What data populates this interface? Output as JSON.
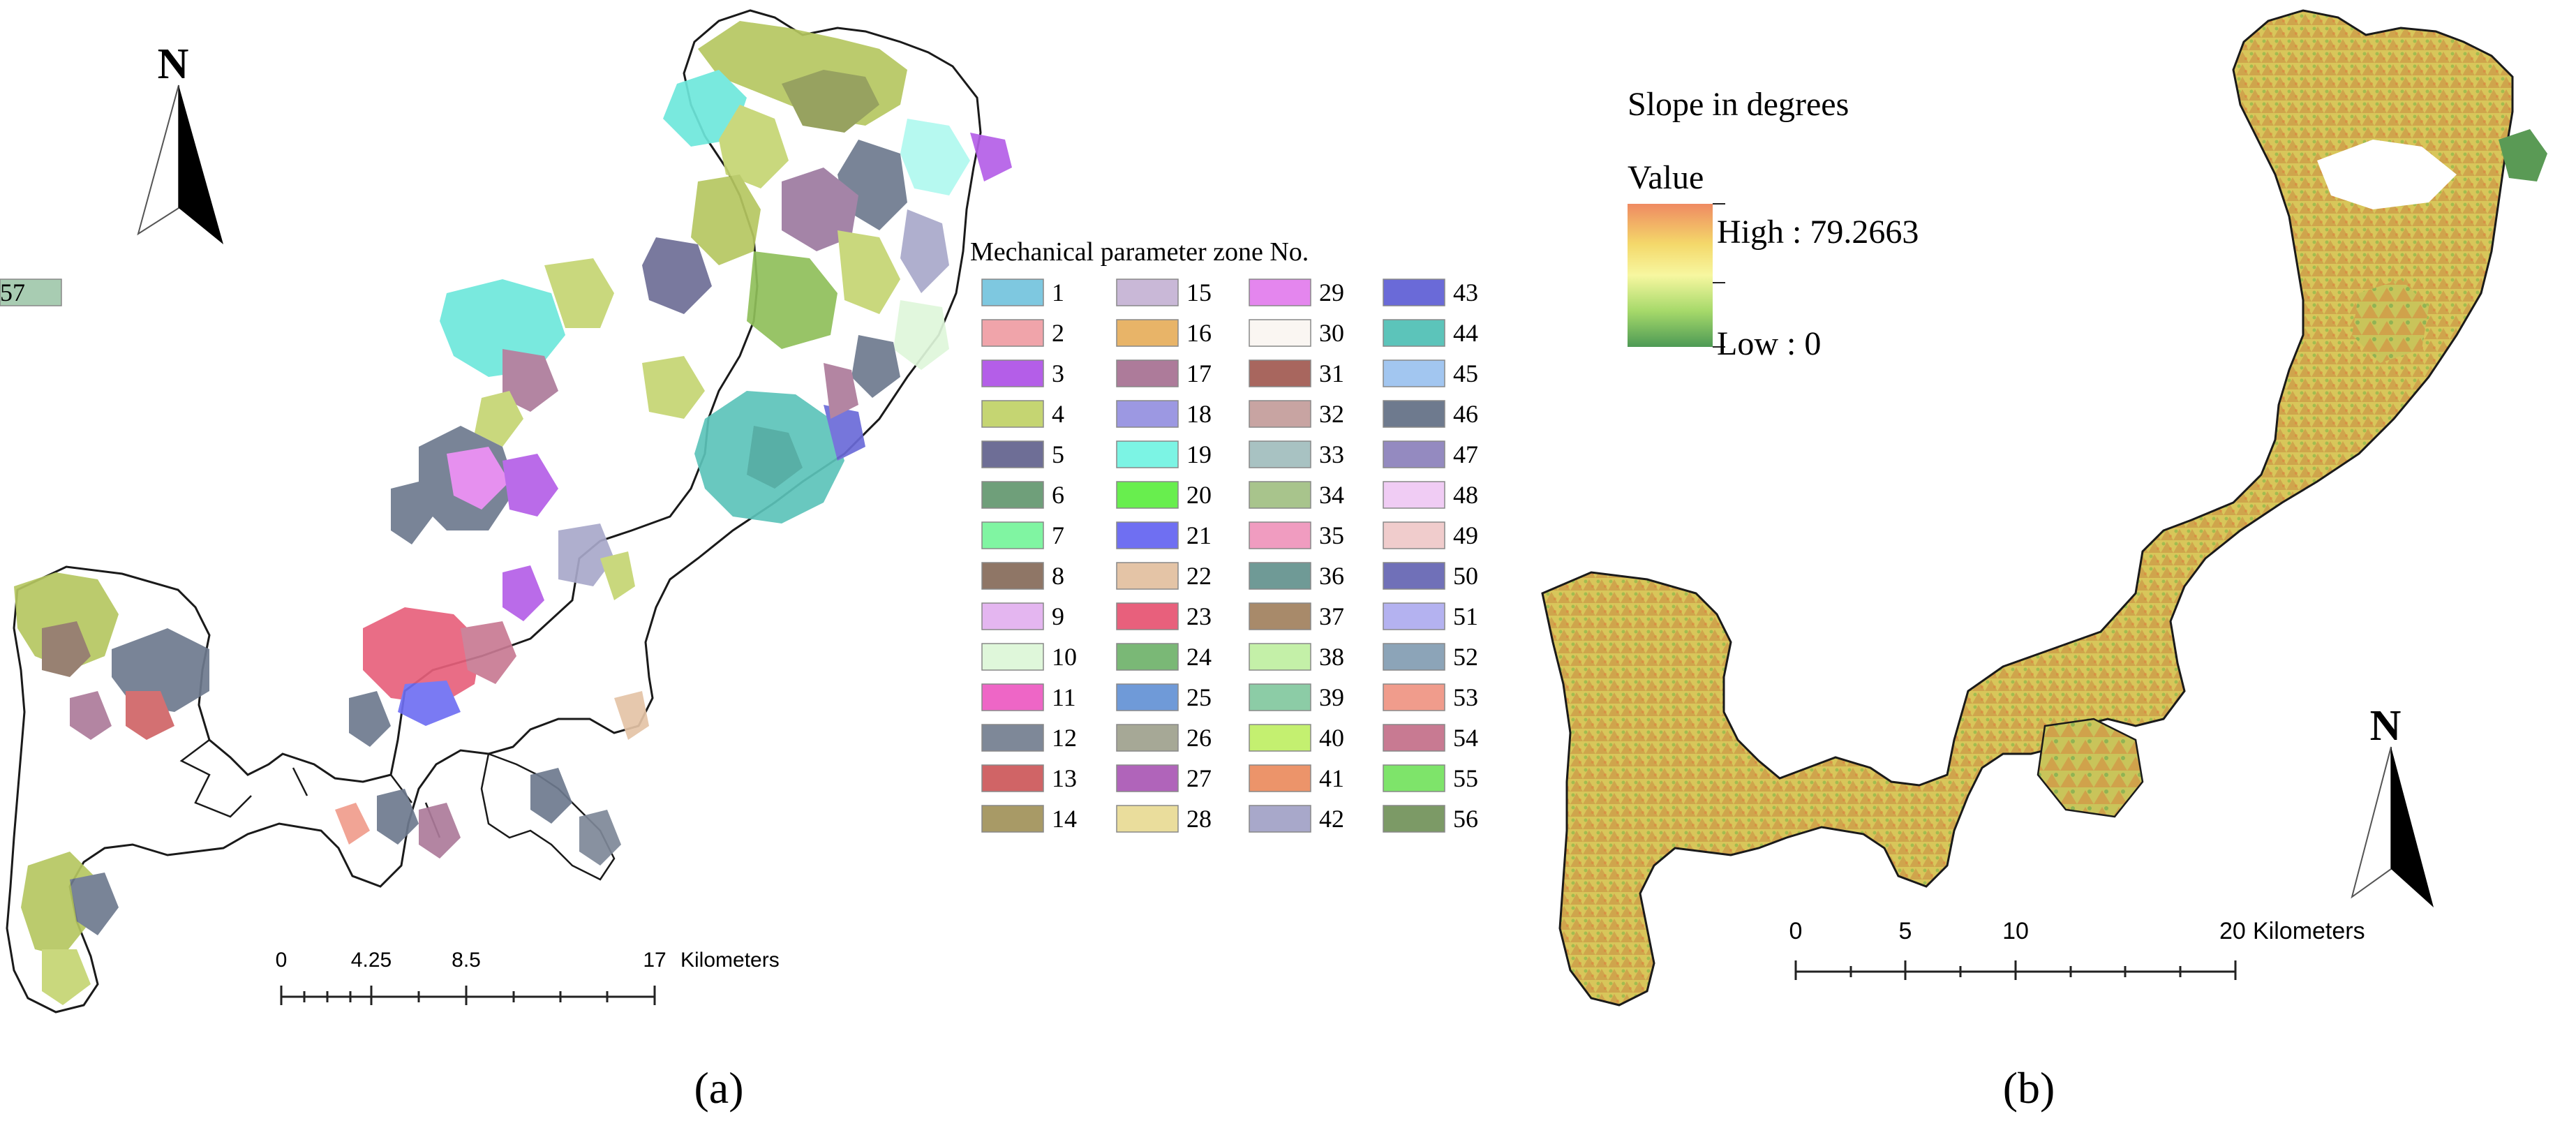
{
  "panel_a": {
    "caption": "(a)",
    "north_label": "N",
    "legend": {
      "title": "Mechanical parameter zone No.",
      "items": [
        {
          "label": "1",
          "color": "#7ec8e0"
        },
        {
          "label": "2",
          "color": "#f0a4aa"
        },
        {
          "label": "3",
          "color": "#b45ee8"
        },
        {
          "label": "4",
          "color": "#c5d572"
        },
        {
          "label": "5",
          "color": "#6e6e96"
        },
        {
          "label": "6",
          "color": "#6f9f7a"
        },
        {
          "label": "7",
          "color": "#80f5a2"
        },
        {
          "label": "8",
          "color": "#8f7666"
        },
        {
          "label": "9",
          "color": "#e4b6f0"
        },
        {
          "label": "10",
          "color": "#dff7da"
        },
        {
          "label": "11",
          "color": "#ee66c6"
        },
        {
          "label": "12",
          "color": "#7e8898"
        },
        {
          "label": "13",
          "color": "#d06466"
        },
        {
          "label": "14",
          "color": "#a89a66"
        },
        {
          "label": "15",
          "color": "#c9b8d7"
        },
        {
          "label": "16",
          "color": "#e8b468"
        },
        {
          "label": "17",
          "color": "#ad7b9a"
        },
        {
          "label": "18",
          "color": "#9c98e2"
        },
        {
          "label": "19",
          "color": "#7cf4e4"
        },
        {
          "label": "20",
          "color": "#68ee4e"
        },
        {
          "label": "21",
          "color": "#6f6ff2"
        },
        {
          "label": "22",
          "color": "#e4c4a6"
        },
        {
          "label": "23",
          "color": "#e8607c"
        },
        {
          "label": "24",
          "color": "#7ab876"
        },
        {
          "label": "25",
          "color": "#6f9ad8"
        },
        {
          "label": "26",
          "color": "#a6a896"
        },
        {
          "label": "27",
          "color": "#b064ba"
        },
        {
          "label": "28",
          "color": "#eadd9c"
        },
        {
          "label": "29",
          "color": "#e486ee"
        },
        {
          "label": "30",
          "color": "#faf6f2"
        },
        {
          "label": "31",
          "color": "#a8665e"
        },
        {
          "label": "32",
          "color": "#c8a4a2"
        },
        {
          "label": "33",
          "color": "#a8c2c2"
        },
        {
          "label": "34",
          "color": "#a8c48c"
        },
        {
          "label": "35",
          "color": "#f09cc0"
        },
        {
          "label": "36",
          "color": "#6f9a96"
        },
        {
          "label": "37",
          "color": "#a88a6a"
        },
        {
          "label": "38",
          "color": "#c4f0a8"
        },
        {
          "label": "39",
          "color": "#8ccca6"
        },
        {
          "label": "40",
          "color": "#c4f070"
        },
        {
          "label": "41",
          "color": "#ec946a"
        },
        {
          "label": "42",
          "color": "#a8a8ca"
        },
        {
          "label": "43",
          "color": "#6a6ad8"
        },
        {
          "label": "44",
          "color": "#5cc4ba"
        },
        {
          "label": "45",
          "color": "#a2c6f0"
        },
        {
          "label": "46",
          "color": "#6e7a8e"
        },
        {
          "label": "47",
          "color": "#948ac0"
        },
        {
          "label": "48",
          "color": "#f0ccf4"
        },
        {
          "label": "49",
          "color": "#f0cccc"
        },
        {
          "label": "50",
          "color": "#7070b8"
        },
        {
          "label": "51",
          "color": "#b4b2f0"
        },
        {
          "label": "52",
          "color": "#8ca4b8"
        },
        {
          "label": "53",
          "color": "#f09c8c"
        },
        {
          "label": "54",
          "color": "#c87a92"
        },
        {
          "label": "55",
          "color": "#7ee46a"
        },
        {
          "label": "56",
          "color": "#7c9a66"
        },
        {
          "label": "57",
          "color": "#a8ccb2"
        }
      ]
    },
    "scale_bar": {
      "labels": [
        "0",
        "4.25",
        "8.5",
        "17"
      ],
      "unit": "Kilometers"
    }
  },
  "panel_b": {
    "caption": "(b)",
    "north_label": "N",
    "legend": {
      "title": "Slope in degrees",
      "subtitle": "Value",
      "high_label": "High : 79.2663",
      "low_label": "Low : 0",
      "ramp_colors": [
        "#ef8a62",
        "#f4d86a",
        "#f7f7a0",
        "#a6d96a",
        "#4d9a55"
      ]
    },
    "scale_bar": {
      "labels": [
        "0",
        "5",
        "10",
        "20"
      ],
      "unit": "Kilometers"
    }
  }
}
